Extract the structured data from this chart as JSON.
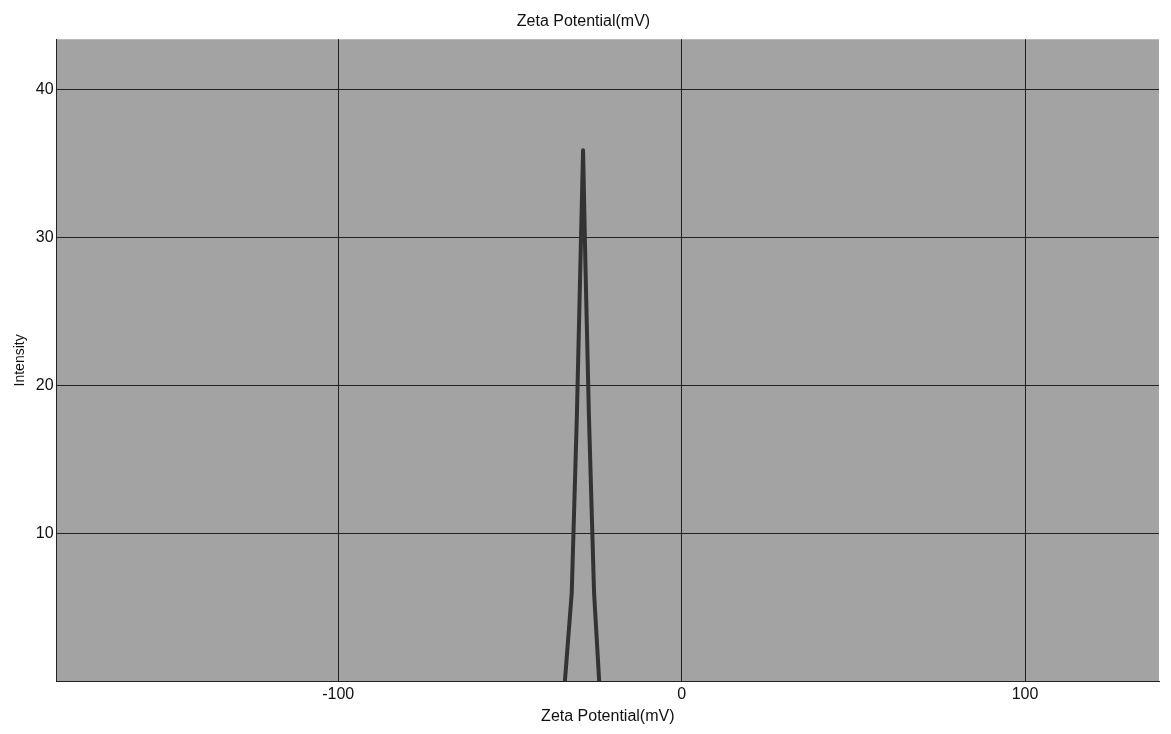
{
  "chart_data": {
    "type": "line",
    "title": "Zeta Potential(mV)",
    "xlabel": "Zeta Potential(mV)",
    "ylabel": "Intensity",
    "x": [
      -34,
      -32,
      -30.5,
      -29.5,
      -28.7,
      -28,
      -27,
      -25.5,
      -24
    ],
    "series": [
      {
        "color": "#333333",
        "values": [
          0,
          6,
          18,
          28,
          35.9,
          28,
          18,
          6,
          0
        ]
      }
    ],
    "xlim": [
      -182,
      139
    ],
    "xticks": [
      -100,
      0,
      100
    ],
    "ylim": [
      0,
      43.4
    ],
    "yticks": [
      10,
      20,
      30,
      40
    ],
    "grid": true,
    "marker": "none",
    "line_style": "solid"
  }
}
